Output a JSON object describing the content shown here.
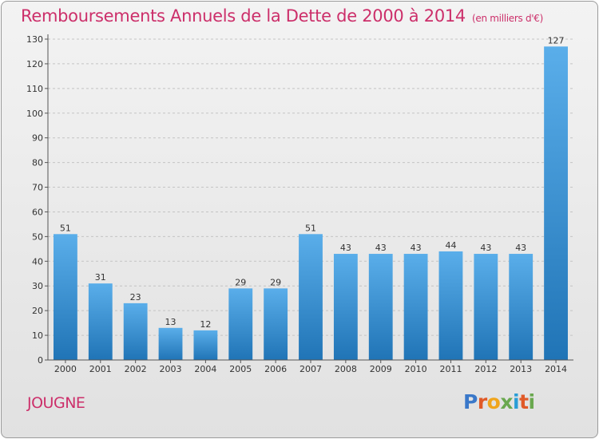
{
  "header": {
    "title": "Remboursements Annuels de la Dette de 2000 à 2014",
    "subtitle": "(en milliers d'€)"
  },
  "footer": {
    "commune": "JOUGNE",
    "logo_text": "Proxiti",
    "logo_colors": [
      "#3a78c9",
      "#e05a28",
      "#f0a51c",
      "#6aa84f",
      "#2a9dd6",
      "#e05a28",
      "#6aa84f"
    ]
  },
  "colors": {
    "bar_light": "#5aaeea",
    "bar_dark": "#2074b6",
    "accent": "#cc2f6a"
  },
  "chart_data": {
    "type": "bar",
    "categories": [
      "2000",
      "2001",
      "2002",
      "2003",
      "2004",
      "2005",
      "2006",
      "2007",
      "2008",
      "2009",
      "2010",
      "2011",
      "2012",
      "2013",
      "2014"
    ],
    "values": [
      51,
      31,
      23,
      13,
      12,
      29,
      29,
      51,
      43,
      43,
      43,
      44,
      43,
      43,
      127
    ],
    "title": "Remboursements Annuels de la Dette de 2000 à 2014",
    "ylim": [
      0,
      130
    ],
    "yticks": [
      0,
      10,
      20,
      30,
      40,
      50,
      60,
      70,
      80,
      90,
      100,
      110,
      120,
      130
    ],
    "grid": "horizontal dashed",
    "legend": "none"
  }
}
